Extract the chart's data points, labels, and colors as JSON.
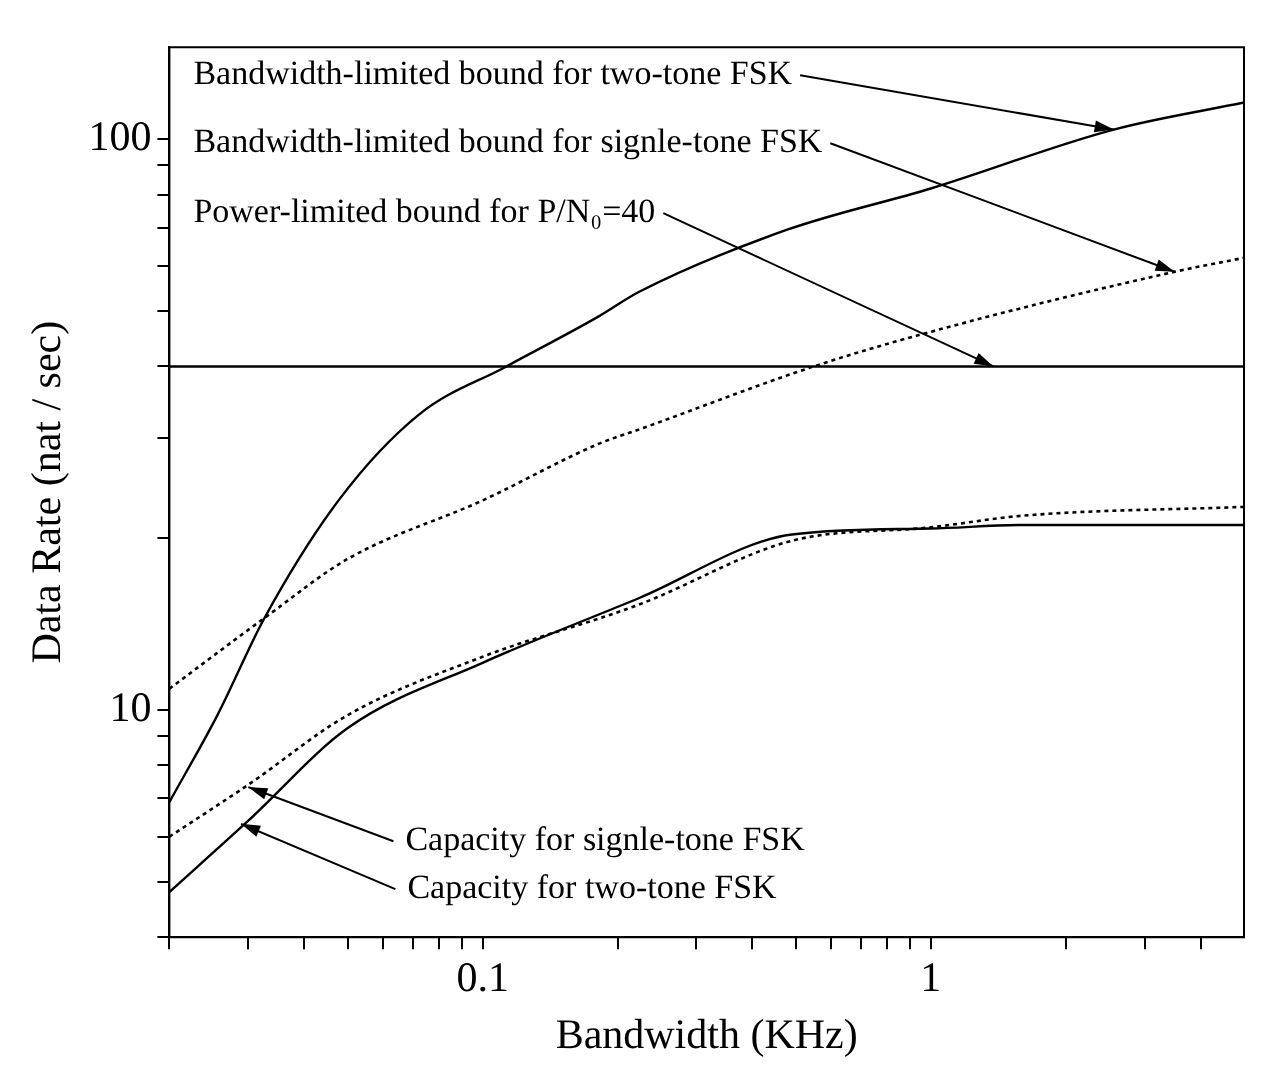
{
  "chart_data": {
    "type": "line",
    "xlabel": "Bandwidth (KHz)",
    "ylabel": "Data Rate (nat / sec)",
    "log": "xy",
    "grid": false,
    "legend": false,
    "marker": "none",
    "xlim": [
      0.02,
      5
    ],
    "ylim": [
      4,
      145
    ],
    "xticks": [
      {
        "value": 0.02,
        "label": null
      },
      {
        "value": 0.03,
        "label": null
      },
      {
        "value": 0.04,
        "label": null
      },
      {
        "value": 0.05,
        "label": null
      },
      {
        "value": 0.06,
        "label": null
      },
      {
        "value": 0.07,
        "label": null
      },
      {
        "value": 0.08,
        "label": null
      },
      {
        "value": 0.09,
        "label": null
      },
      0.1,
      {
        "value": 0.2,
        "label": null
      },
      {
        "value": 0.3,
        "label": null
      },
      {
        "value": 0.4,
        "label": null
      },
      {
        "value": 0.5,
        "label": null
      },
      {
        "value": 0.6,
        "label": null
      },
      {
        "value": 0.7,
        "label": null
      },
      {
        "value": 0.8,
        "label": null
      },
      {
        "value": 0.9,
        "label": null
      },
      1,
      {
        "value": 2,
        "label": null
      },
      {
        "value": 3,
        "label": null
      },
      {
        "value": 4,
        "label": null
      }
    ],
    "yticks": [
      {
        "value": 4,
        "label": null
      },
      {
        "value": 5,
        "label": null
      },
      {
        "value": 6,
        "label": null
      },
      {
        "value": 7,
        "label": null
      },
      {
        "value": 8,
        "label": null
      },
      {
        "value": 9,
        "label": null
      },
      10,
      {
        "value": 20,
        "label": null
      },
      {
        "value": 30,
        "label": null
      },
      {
        "value": 40,
        "label": null
      },
      {
        "value": 50,
        "label": null
      },
      {
        "value": 60,
        "label": null
      },
      {
        "value": 70,
        "label": null
      },
      {
        "value": 80,
        "label": null
      },
      {
        "value": 90,
        "label": null
      },
      100
    ],
    "series": [
      {
        "color": "#000000",
        "line_style": "solid",
        "x": [
          0.02,
          0.0256,
          0.0326,
          0.0477,
          0.0723,
          0.113,
          0.182,
          0.223,
          0.48,
          1,
          2.56,
          5
        ],
        "values": [
          6.9,
          9.8,
          14.5,
          23.3,
          33,
          40,
          49,
          54,
          69.5,
          82,
          104,
          116
        ]
      },
      {
        "color": "#000000",
        "line_style": "dotted",
        "x": [
          0.02,
          0.0326,
          0.05,
          0.1,
          0.182,
          0.223,
          0.548,
          1,
          3.5,
          5
        ],
        "values": [
          10.9,
          14.5,
          18.4,
          23.3,
          29.3,
          31,
          40,
          46,
          58.6,
          62
        ]
      },
      {
        "color": "#000000",
        "line_style": "solid",
        "x": [
          0.02,
          5
        ],
        "values": [
          40,
          40
        ]
      },
      {
        "color": "#000000",
        "line_style": "dotted",
        "x": [
          0.02,
          0.03,
          0.05,
          0.1,
          0.223,
          0.49,
          1,
          1.6,
          5
        ],
        "values": [
          6.0,
          7.4,
          9.8,
          12.4,
          15.3,
          19.8,
          20.9,
          21.9,
          22.7
        ]
      },
      {
        "color": "#000000",
        "line_style": "solid",
        "x": [
          0.02,
          0.03,
          0.05,
          0.1,
          0.223,
          0.49,
          1,
          1.6,
          5
        ],
        "values": [
          4.8,
          6.4,
          9.3,
          12.1,
          15.7,
          20.3,
          20.8,
          21.1,
          21.1
        ]
      }
    ],
    "annotations": [
      {
        "text": "Bandwidth-limited bound for two-tone FSK",
        "x": 2.56,
        "y": 104
      },
      {
        "text": "Bandwidth-limited bound for signle-tone FSK",
        "x": 3.5,
        "y": 58.6
      },
      {
        "text": "Power-limited bound for P/N₀=40",
        "x": 1.38,
        "y": 40
      },
      {
        "text": "Capacity for signle-tone FSK",
        "x": 0.03,
        "y": 7.33
      },
      {
        "text": "Capacity for two-tone FSK",
        "x": 0.0289,
        "y": 6.32
      }
    ]
  }
}
